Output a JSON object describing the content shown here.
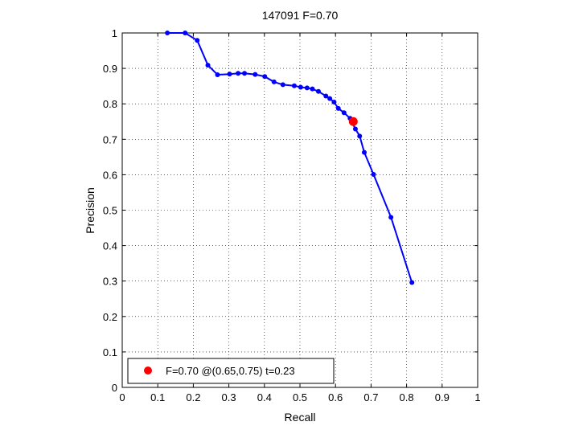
{
  "chart_data": {
    "type": "line",
    "title": "147091 F=0.70",
    "xlabel": "Recall",
    "ylabel": "Precision",
    "xlim": [
      0,
      1
    ],
    "ylim": [
      0,
      1
    ],
    "xticks": [
      "0",
      "0.1",
      "0.2",
      "0.3",
      "0.4",
      "0.5",
      "0.6",
      "0.7",
      "0.8",
      "0.9",
      "1"
    ],
    "yticks": [
      "0",
      "0.1",
      "0.2",
      "0.3",
      "0.4",
      "0.5",
      "0.6",
      "0.7",
      "0.8",
      "0.9",
      "1"
    ],
    "grid": true,
    "legend_position": "bottom-left",
    "series": [
      {
        "color": "#0000ff",
        "points": [
          [
            0.127,
            1.0
          ],
          [
            0.177,
            1.0
          ],
          [
            0.211,
            0.979
          ],
          [
            0.241,
            0.909
          ],
          [
            0.268,
            0.882
          ],
          [
            0.302,
            0.884
          ],
          [
            0.326,
            0.886
          ],
          [
            0.344,
            0.886
          ],
          [
            0.374,
            0.883
          ],
          [
            0.401,
            0.877
          ],
          [
            0.427,
            0.862
          ],
          [
            0.452,
            0.854
          ],
          [
            0.484,
            0.851
          ],
          [
            0.502,
            0.847
          ],
          [
            0.52,
            0.845
          ],
          [
            0.535,
            0.842
          ],
          [
            0.552,
            0.835
          ],
          [
            0.573,
            0.822
          ],
          [
            0.584,
            0.815
          ],
          [
            0.596,
            0.805
          ],
          [
            0.608,
            0.787
          ],
          [
            0.624,
            0.775
          ],
          [
            0.641,
            0.759
          ],
          [
            0.656,
            0.729
          ],
          [
            0.668,
            0.709
          ],
          [
            0.681,
            0.663
          ],
          [
            0.707,
            0.601
          ],
          [
            0.756,
            0.48
          ],
          [
            0.815,
            0.296
          ]
        ]
      }
    ],
    "highlight": {
      "recall": 0.65,
      "precision": 0.75,
      "color": "#ff0000"
    },
    "legend": {
      "label": "F=0.70 @(0.65,0.75) t=0.23",
      "marker_color": "#ff0000"
    }
  }
}
